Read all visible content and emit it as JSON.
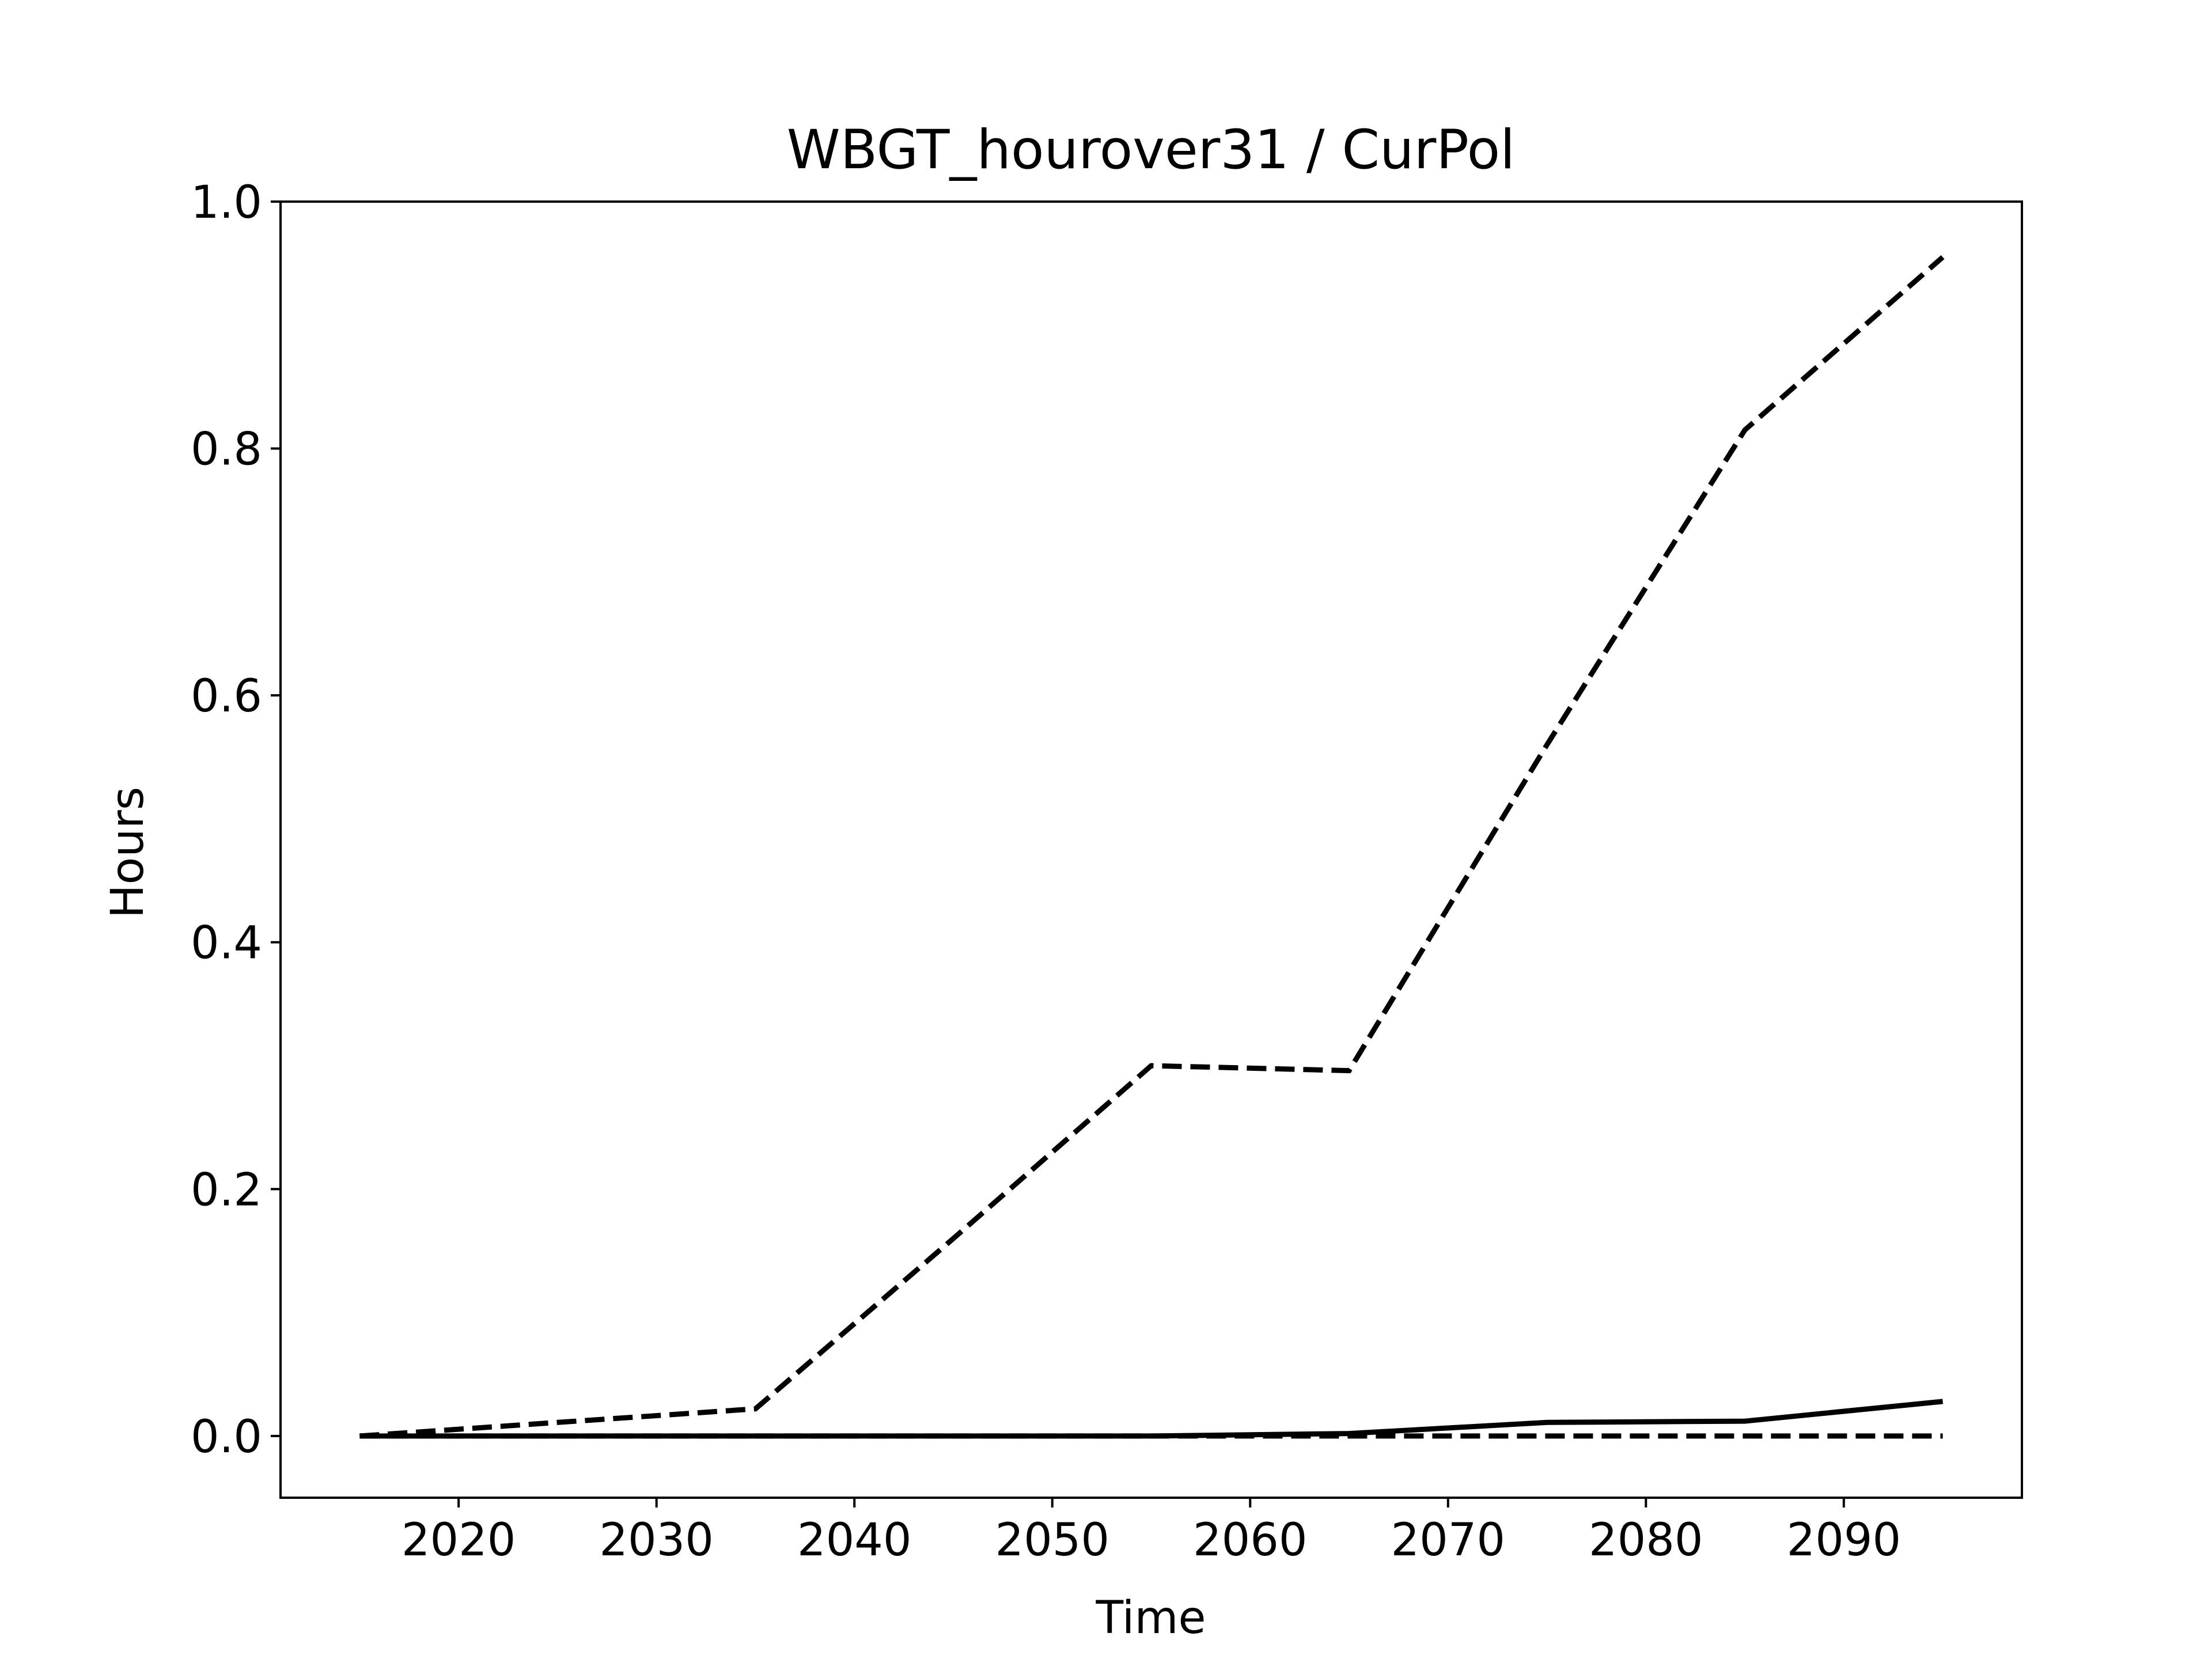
{
  "chart_data": {
    "type": "line",
    "title": "WBGT_hourover31 / CurPol",
    "xlabel": "Time",
    "ylabel": "Hours",
    "xlim": [
      2011,
      2099
    ],
    "ylim": [
      -0.05,
      1.0
    ],
    "xticks": [
      2020,
      2030,
      2040,
      2050,
      2060,
      2070,
      2080,
      2090
    ],
    "yticks": [
      0.0,
      0.2,
      0.4,
      0.6,
      0.8,
      1.0
    ],
    "ytick_labels": [
      "0.0",
      "0.2",
      "0.4",
      "0.6",
      "0.8",
      "1.0"
    ],
    "grid": false,
    "legend": "none",
    "x": [
      2015,
      2025,
      2035,
      2045,
      2055,
      2065,
      2075,
      2085,
      2095
    ],
    "series": [
      {
        "line_style": "dashed",
        "color": "#000000",
        "values": [
          0.0,
          0.011,
          0.022,
          0.16,
          0.3,
          0.296,
          0.56,
          0.815,
          0.955
        ]
      },
      {
        "line_style": "solid",
        "color": "#000000",
        "values": [
          0.0,
          0.0,
          0.0,
          0.0,
          0.0,
          0.002,
          0.011,
          0.012,
          0.028
        ]
      },
      {
        "line_style": "dashed",
        "color": "#000000",
        "values": [
          0.0,
          0.0,
          0.0,
          0.0,
          0.0,
          0.0,
          0.0,
          0.0,
          0.0
        ]
      }
    ]
  }
}
